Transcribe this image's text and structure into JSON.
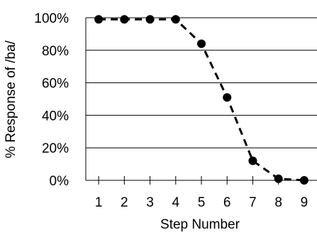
{
  "chart_data": {
    "type": "line",
    "x": [
      1,
      2,
      3,
      4,
      5,
      6,
      7,
      8,
      9
    ],
    "series": [
      {
        "values": [
          99,
          99,
          99,
          99,
          84,
          51,
          12,
          1,
          0
        ]
      }
    ],
    "xlabel": "Step Number",
    "ylabel": "% Response  of  /ba/",
    "ylim": [
      0,
      100
    ],
    "y_ticks": [
      "0%",
      "20%",
      "40%",
      "60%",
      "80%",
      "100%"
    ],
    "x_ticks": [
      "1",
      "2",
      "3",
      "4",
      "5",
      "6",
      "7",
      "8",
      "9"
    ],
    "grid": true,
    "line_style": "dashed",
    "marker": "filled-circle",
    "colors": {
      "line": "#000000",
      "grid": "#000000"
    }
  }
}
